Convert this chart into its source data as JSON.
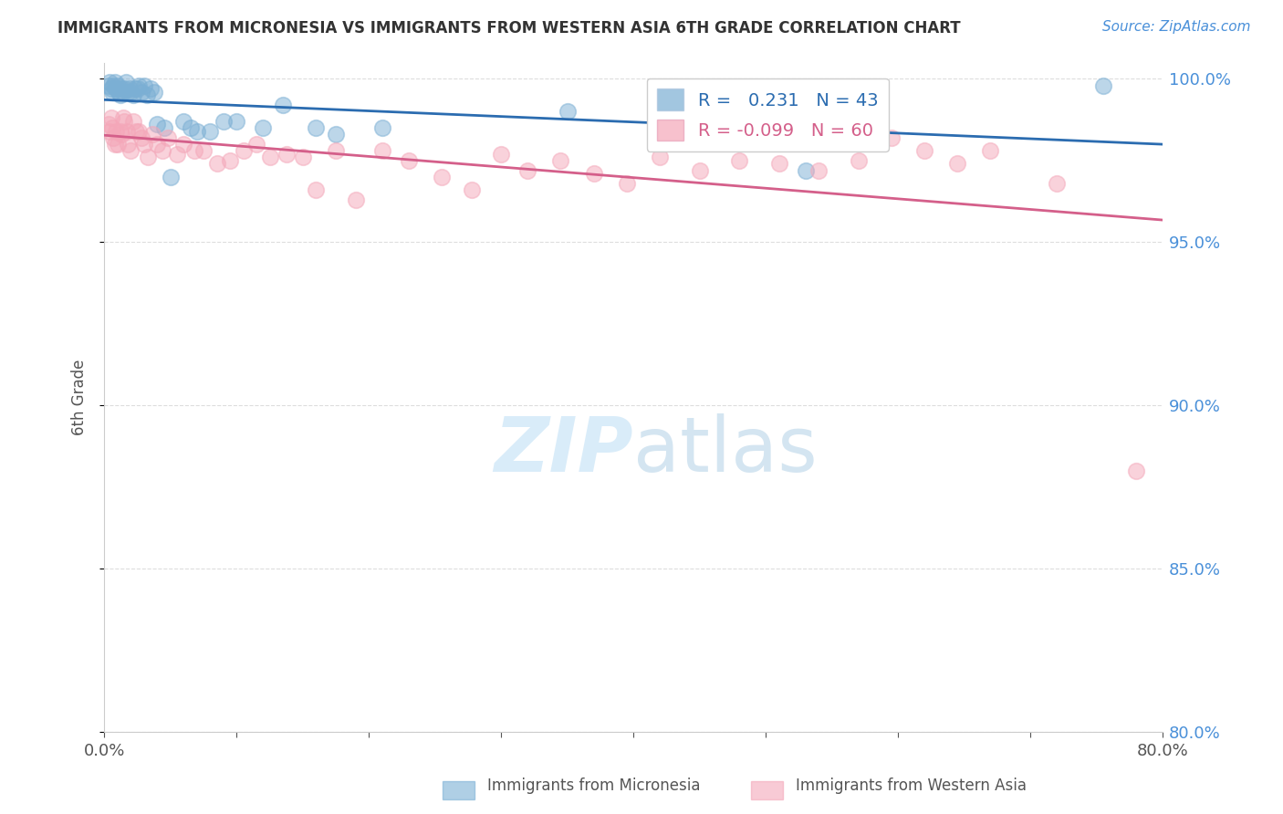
{
  "title": "IMMIGRANTS FROM MICRONESIA VS IMMIGRANTS FROM WESTERN ASIA 6TH GRADE CORRELATION CHART",
  "source": "Source: ZipAtlas.com",
  "ylabel": "6th Grade",
  "xlim": [
    0.0,
    0.8
  ],
  "ylim": [
    0.8,
    1.005
  ],
  "ytick_labels": [
    "80.0%",
    "85.0%",
    "90.0%",
    "95.0%",
    "100.0%"
  ],
  "ytick_values": [
    0.8,
    0.85,
    0.9,
    0.95,
    1.0
  ],
  "xtick_labels": [
    "0.0%",
    "",
    "",
    "",
    "",
    "",
    "",
    "",
    "80.0%"
  ],
  "xtick_values": [
    0.0,
    0.1,
    0.2,
    0.3,
    0.4,
    0.5,
    0.6,
    0.7,
    0.8
  ],
  "legend_label_blue": "Immigrants from Micronesia",
  "legend_label_pink": "Immigrants from Western Asia",
  "R_blue": 0.231,
  "N_blue": 43,
  "R_pink": -0.099,
  "N_pink": 60,
  "color_blue": "#7bafd4",
  "color_pink": "#f4a7b9",
  "line_color_blue": "#2b6cb0",
  "line_color_pink": "#d45f8a",
  "blue_x": [
    0.003,
    0.004,
    0.005,
    0.006,
    0.007,
    0.008,
    0.009,
    0.01,
    0.011,
    0.012,
    0.013,
    0.014,
    0.015,
    0.016,
    0.018,
    0.019,
    0.02,
    0.022,
    0.023,
    0.025,
    0.026,
    0.028,
    0.03,
    0.032,
    0.035,
    0.038,
    0.04,
    0.045,
    0.05,
    0.06,
    0.065,
    0.07,
    0.08,
    0.09,
    0.1,
    0.12,
    0.135,
    0.16,
    0.175,
    0.21,
    0.35,
    0.53,
    0.755
  ],
  "blue_y": [
    0.998,
    0.999,
    0.997,
    0.996,
    0.998,
    0.999,
    0.997,
    0.998,
    0.996,
    0.995,
    0.997,
    0.996,
    0.997,
    0.999,
    0.996,
    0.997,
    0.996,
    0.995,
    0.997,
    0.997,
    0.998,
    0.996,
    0.998,
    0.995,
    0.997,
    0.996,
    0.986,
    0.985,
    0.97,
    0.987,
    0.985,
    0.984,
    0.984,
    0.987,
    0.987,
    0.985,
    0.992,
    0.985,
    0.983,
    0.985,
    0.99,
    0.972,
    0.998
  ],
  "pink_x": [
    0.003,
    0.004,
    0.005,
    0.006,
    0.007,
    0.008,
    0.009,
    0.01,
    0.012,
    0.013,
    0.014,
    0.015,
    0.017,
    0.018,
    0.02,
    0.022,
    0.024,
    0.026,
    0.028,
    0.03,
    0.033,
    0.036,
    0.04,
    0.044,
    0.048,
    0.055,
    0.06,
    0.068,
    0.075,
    0.085,
    0.095,
    0.105,
    0.115,
    0.125,
    0.138,
    0.15,
    0.16,
    0.175,
    0.19,
    0.21,
    0.23,
    0.255,
    0.278,
    0.3,
    0.32,
    0.345,
    0.37,
    0.395,
    0.42,
    0.45,
    0.48,
    0.51,
    0.54,
    0.57,
    0.595,
    0.62,
    0.645,
    0.67,
    0.72,
    0.78
  ],
  "pink_y": [
    0.986,
    0.984,
    0.988,
    0.985,
    0.982,
    0.98,
    0.984,
    0.98,
    0.984,
    0.983,
    0.988,
    0.987,
    0.984,
    0.98,
    0.978,
    0.987,
    0.984,
    0.984,
    0.982,
    0.98,
    0.976,
    0.983,
    0.98,
    0.978,
    0.982,
    0.977,
    0.98,
    0.978,
    0.978,
    0.974,
    0.975,
    0.978,
    0.98,
    0.976,
    0.977,
    0.976,
    0.966,
    0.978,
    0.963,
    0.978,
    0.975,
    0.97,
    0.966,
    0.977,
    0.972,
    0.975,
    0.971,
    0.968,
    0.976,
    0.972,
    0.975,
    0.974,
    0.972,
    0.975,
    0.982,
    0.978,
    0.974,
    0.978,
    0.968,
    0.88
  ],
  "background_color": "#ffffff",
  "grid_color": "#dddddd",
  "watermark_color": "#d0e8f8"
}
